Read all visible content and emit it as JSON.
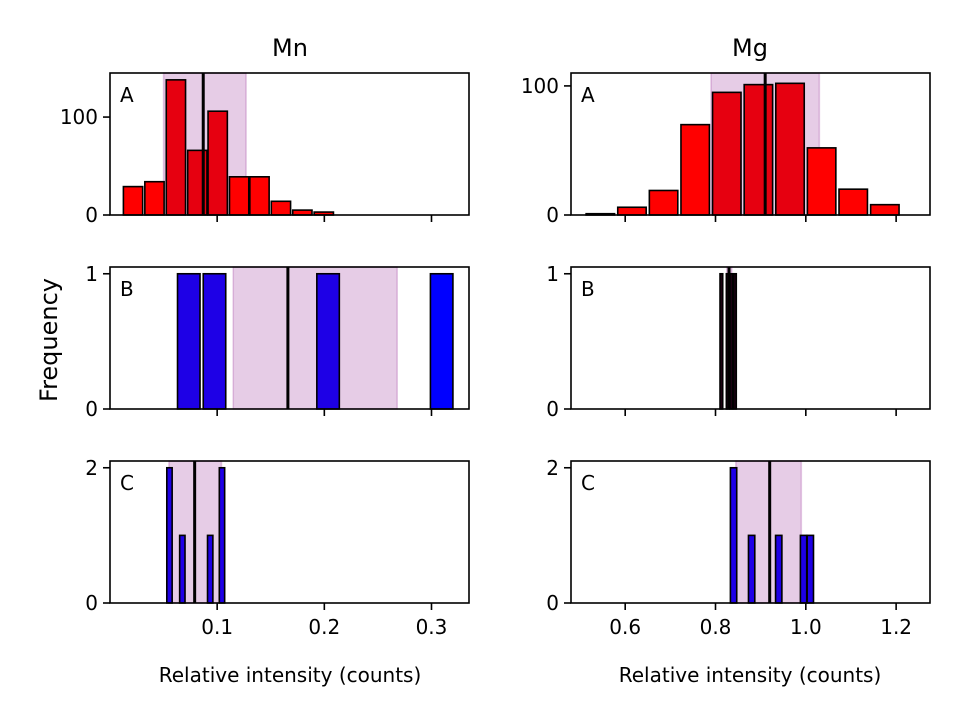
{
  "figure": {
    "ylabel": "Frequency",
    "column_titles": [
      "Mn",
      "Mg"
    ],
    "xlabel": "Relative intensity (counts)"
  },
  "colors": {
    "red": "#ff0000",
    "blue": "#0000ff",
    "band": "#800080"
  },
  "chart_data": [
    {
      "id": "Mn-A",
      "type": "bar",
      "column": "Mn",
      "panel": "A",
      "xlim": [
        0.0,
        0.335
      ],
      "ylim": [
        0,
        145
      ],
      "xticks": [],
      "xtick_labels": [],
      "yticks": [
        0,
        100
      ],
      "ytick_labels": [
        "0",
        "100"
      ],
      "mean": 0.087,
      "band": [
        0.05,
        0.127
      ],
      "bar_width": 0.018,
      "bars": [
        {
          "x": 0.0215,
          "y": 29,
          "color": "#ff0000"
        },
        {
          "x": 0.0415,
          "y": 34,
          "color": "#ff0000"
        },
        {
          "x": 0.0615,
          "y": 138,
          "color": "#e60010"
        },
        {
          "x": 0.0815,
          "y": 66,
          "color": "#e60010"
        },
        {
          "x": 0.1005,
          "y": 106,
          "color": "#e60010"
        },
        {
          "x": 0.1205,
          "y": 39,
          "color": "#ff0000"
        },
        {
          "x": 0.1395,
          "y": 39,
          "color": "#ff0000"
        },
        {
          "x": 0.1595,
          "y": 14,
          "color": "#ff0000"
        },
        {
          "x": 0.1795,
          "y": 5,
          "color": "#ff0000"
        },
        {
          "x": 0.1995,
          "y": 3,
          "color": "#ff0000"
        }
      ]
    },
    {
      "id": "Mg-A",
      "type": "bar",
      "column": "Mg",
      "panel": "A",
      "xlim": [
        0.48,
        1.275
      ],
      "ylim": [
        0,
        110
      ],
      "xticks": [],
      "xtick_labels": [],
      "yticks": [
        0,
        100
      ],
      "ytick_labels": [
        "0",
        "100"
      ],
      "mean": 0.91,
      "band": [
        0.79,
        1.03
      ],
      "bar_width": 0.063,
      "bars": [
        {
          "x": 0.545,
          "y": 1,
          "color": "#ff0000"
        },
        {
          "x": 0.615,
          "y": 6,
          "color": "#ff0000"
        },
        {
          "x": 0.685,
          "y": 19,
          "color": "#ff0000"
        },
        {
          "x": 0.755,
          "y": 70,
          "color": "#ff0000"
        },
        {
          "x": 0.825,
          "y": 95,
          "color": "#e60010"
        },
        {
          "x": 0.895,
          "y": 101,
          "color": "#e60010"
        },
        {
          "x": 0.965,
          "y": 102,
          "color": "#e60010"
        },
        {
          "x": 1.035,
          "y": 52,
          "color": "#ff0000"
        },
        {
          "x": 1.105,
          "y": 20,
          "color": "#ff0000"
        },
        {
          "x": 1.175,
          "y": 8,
          "color": "#ff0000"
        }
      ]
    },
    {
      "id": "Mn-B",
      "type": "bar",
      "column": "Mn",
      "panel": "B",
      "xlim": [
        0.0,
        0.335
      ],
      "ylim": [
        0,
        1.05
      ],
      "xticks": [],
      "xtick_labels": [],
      "yticks": [
        0,
        1
      ],
      "ytick_labels": [
        "0",
        "1"
      ],
      "mean": 0.166,
      "band": [
        0.115,
        0.268
      ],
      "bar_width": 0.021,
      "bars": [
        {
          "x": 0.0735,
          "y": 1,
          "color": "#1e00e6"
        },
        {
          "x": 0.0975,
          "y": 1,
          "color": "#1e00e6"
        },
        {
          "x": 0.2035,
          "y": 1,
          "color": "#1e00e6"
        },
        {
          "x": 0.3095,
          "y": 1,
          "color": "#0000ff"
        }
      ]
    },
    {
      "id": "Mg-B",
      "type": "bar",
      "column": "Mg",
      "panel": "B",
      "xlim": [
        0.48,
        1.275
      ],
      "ylim": [
        0,
        1.05
      ],
      "xticks": [],
      "xtick_labels": [],
      "yticks": [
        0,
        1
      ],
      "ytick_labels": [
        "0",
        "1"
      ],
      "mean": 0.83,
      "band": [
        0.825,
        0.836
      ],
      "bar_width": 0.006,
      "bars": [
        {
          "x": 0.813,
          "y": 1,
          "color": "#1e0014"
        },
        {
          "x": 0.827,
          "y": 1,
          "color": "#1e0014"
        },
        {
          "x": 0.835,
          "y": 1,
          "color": "#1e0014"
        },
        {
          "x": 0.843,
          "y": 1,
          "color": "#1e0014"
        }
      ]
    },
    {
      "id": "Mn-C",
      "type": "bar",
      "column": "Mn",
      "panel": "C",
      "xlim": [
        0.0,
        0.335
      ],
      "ylim": [
        0,
        2.1
      ],
      "xticks": [
        0.1,
        0.2,
        0.3
      ],
      "xtick_labels": [
        "0.1",
        "0.2",
        "0.3"
      ],
      "yticks": [
        0,
        2
      ],
      "ytick_labels": [
        "0",
        "2"
      ],
      "mean": 0.079,
      "band": [
        0.055,
        0.104
      ],
      "bar_width": 0.005,
      "bars": [
        {
          "x": 0.0555,
          "y": 2,
          "color": "#1e00e6"
        },
        {
          "x": 0.0675,
          "y": 1,
          "color": "#1e00e6"
        },
        {
          "x": 0.0935,
          "y": 1,
          "color": "#1e00e6"
        },
        {
          "x": 0.1045,
          "y": 2,
          "color": "#1e00e6"
        }
      ]
    },
    {
      "id": "Mg-C",
      "type": "bar",
      "column": "Mg",
      "panel": "C",
      "xlim": [
        0.48,
        1.275
      ],
      "ylim": [
        0,
        2.1
      ],
      "xticks": [
        0.6,
        0.8,
        1.0,
        1.2
      ],
      "xtick_labels": [
        "0.6",
        "0.8",
        "1.0",
        "1.2"
      ],
      "yticks": [
        0,
        2
      ],
      "ytick_labels": [
        "0",
        "2"
      ],
      "mean": 0.92,
      "band": [
        0.845,
        0.99
      ],
      "bar_width": 0.014,
      "bars": [
        {
          "x": 0.84,
          "y": 2,
          "color": "#1e00e6"
        },
        {
          "x": 0.88,
          "y": 1,
          "color": "#1e00e6"
        },
        {
          "x": 0.94,
          "y": 1,
          "color": "#1e00e6"
        },
        {
          "x": 0.995,
          "y": 1,
          "color": "#1e00e6"
        },
        {
          "x": 1.01,
          "y": 1,
          "color": "#1e00e6"
        }
      ]
    }
  ]
}
